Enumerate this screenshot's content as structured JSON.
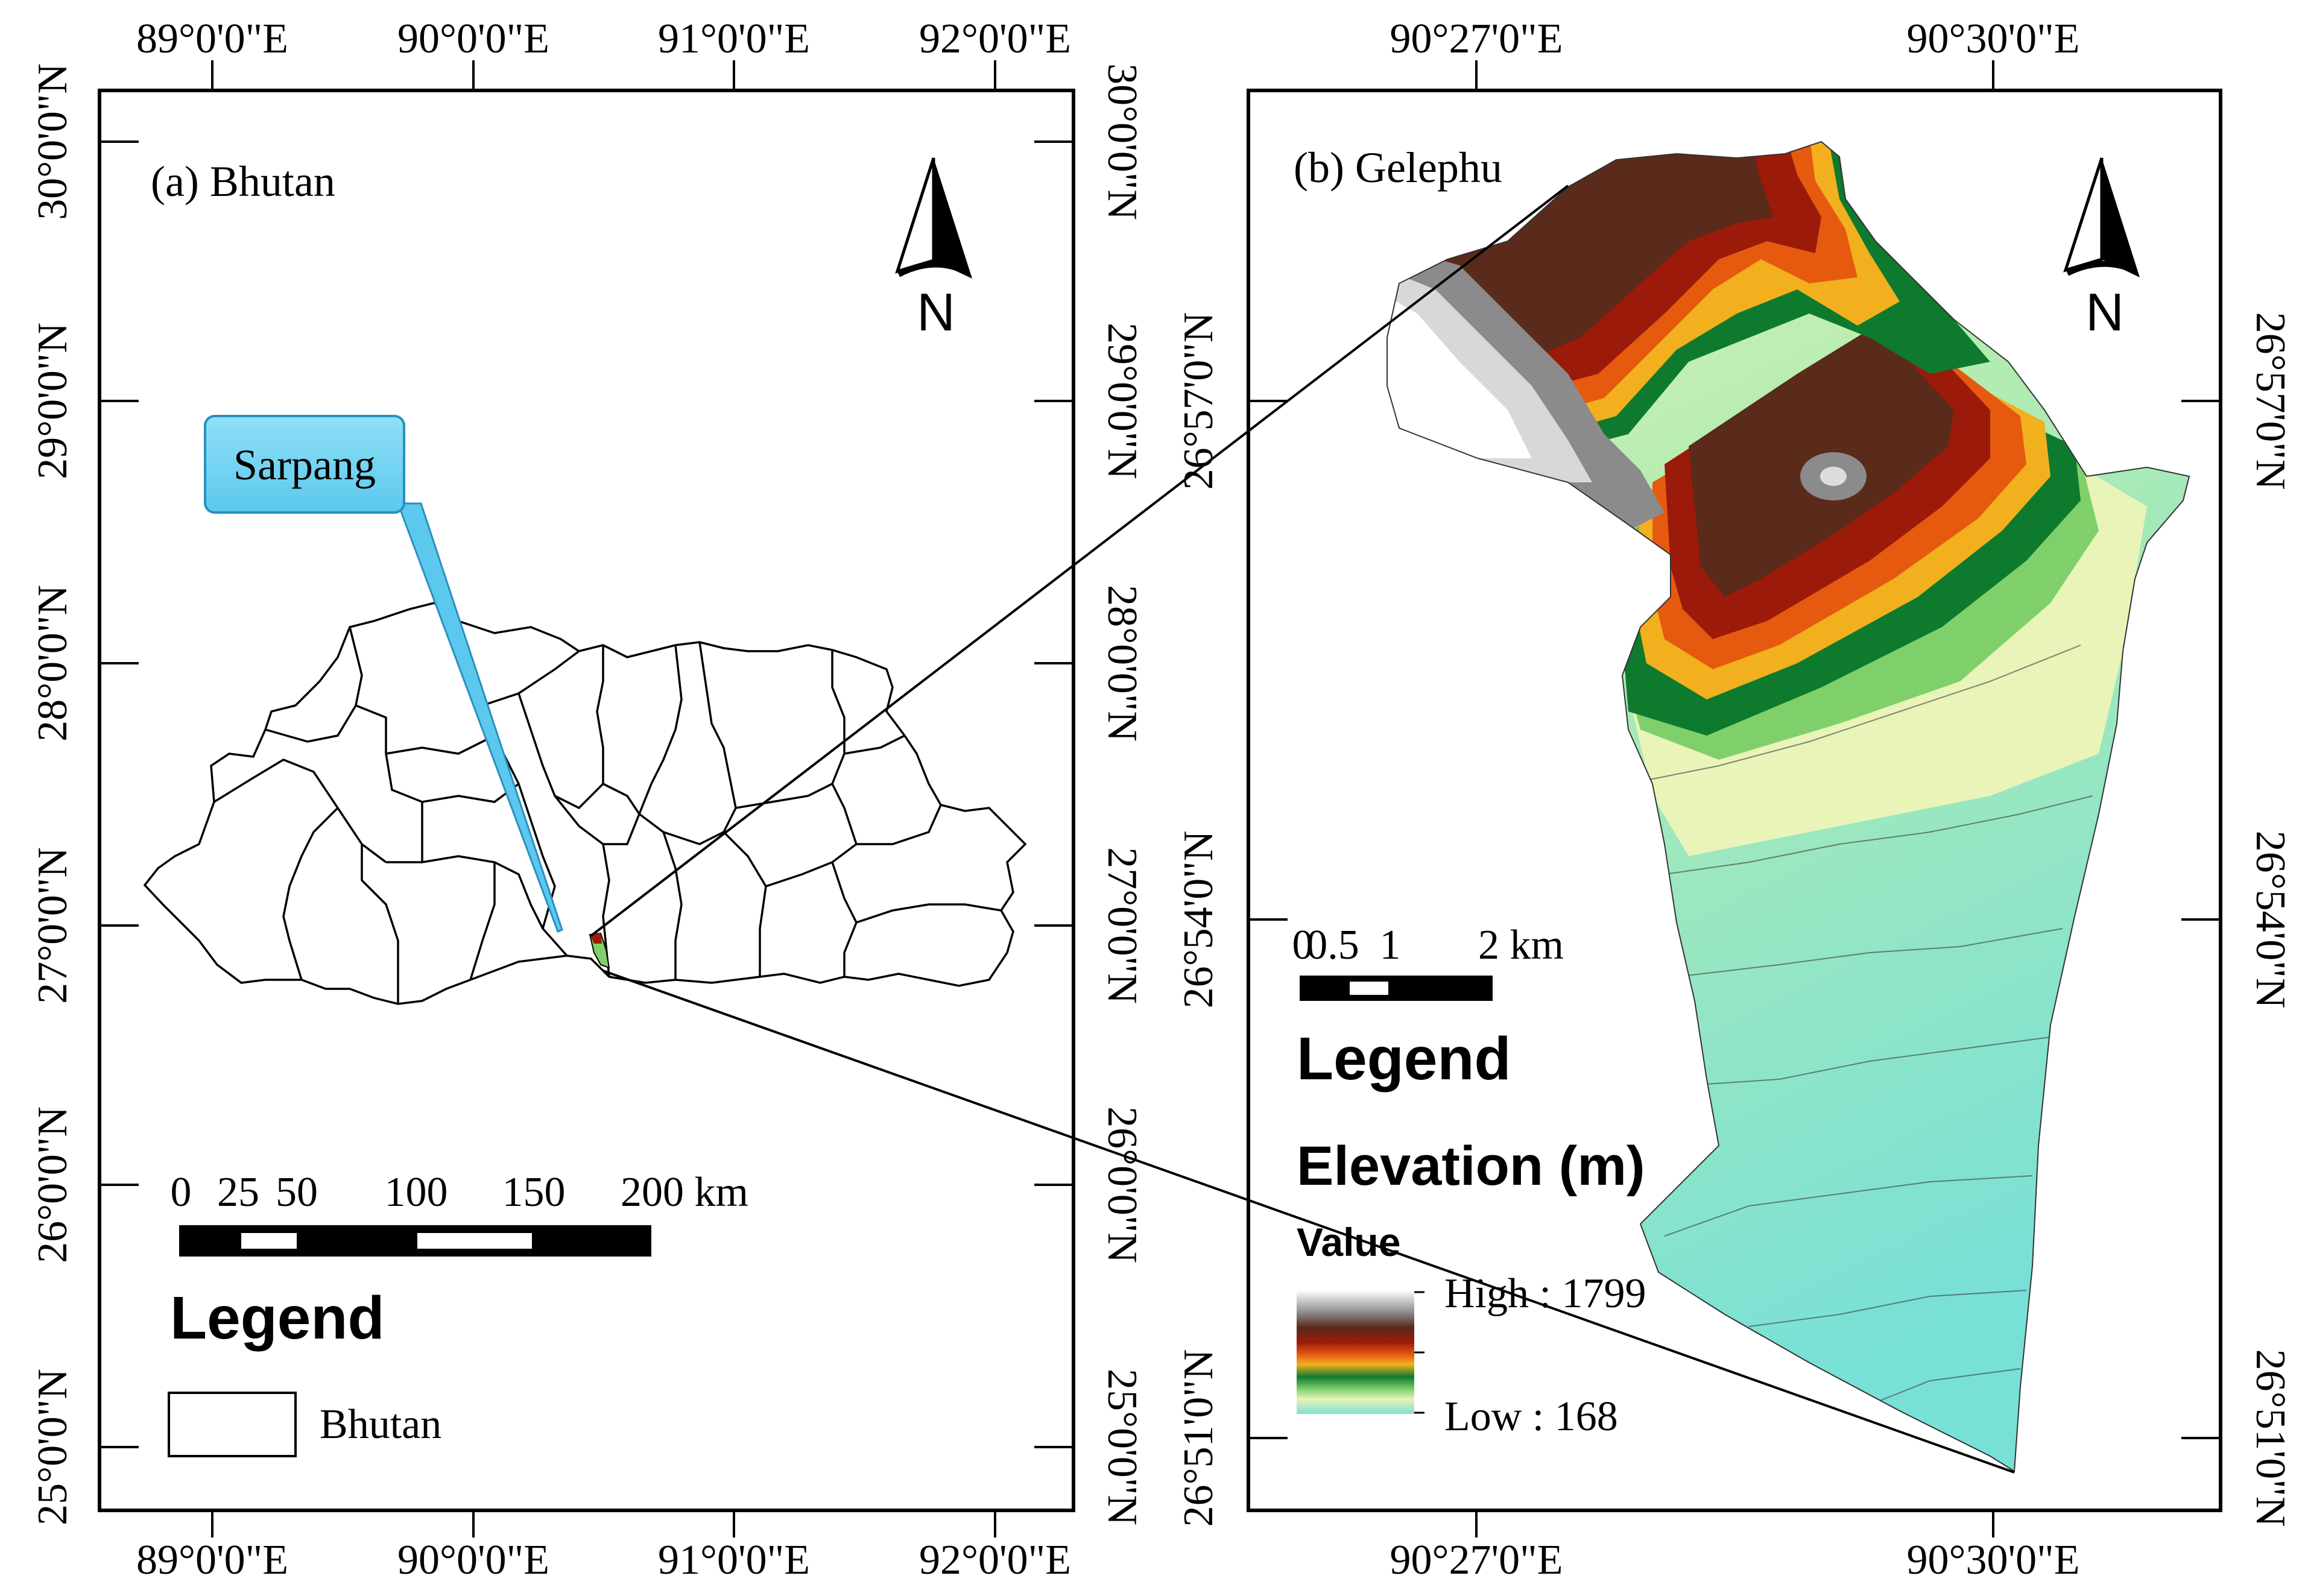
{
  "panel_a": {
    "title": "(a) Bhutan",
    "x_ticks": [
      "89°0'0\"E",
      "90°0'0\"E",
      "91°0'0\"E",
      "92°0'0\"E"
    ],
    "y_ticks": [
      "30°0'0\"N",
      "29°0'0\"N",
      "28°0'0\"N",
      "27°0'0\"N",
      "26°0'0\"N",
      "25°0'0\"N"
    ],
    "callout": "Sarpang",
    "north_label": "N",
    "scale_labels": [
      "0",
      "25",
      "50",
      "100",
      "150",
      "200 km"
    ],
    "legend_title": "Legend",
    "legend_item": "Bhutan"
  },
  "panel_b": {
    "title": "(b) Gelephu",
    "x_ticks": [
      "90°27'0\"E",
      "90°30'0\"E"
    ],
    "y_ticks": [
      "26°57'0\"N",
      "26°54'0\"N",
      "26°51'0\"N"
    ],
    "north_label": "N",
    "scale_labels": [
      "0",
      "0.5",
      "1",
      "2 km"
    ],
    "legend_title": "Legend",
    "legend_subtitle": "Elevation (m)",
    "legend_value": "Value",
    "high_label": "High : 1799",
    "low_label": "Low : 168",
    "elevation_high": 1799,
    "elevation_low": 168,
    "ramp_colors": [
      "#ffffff",
      "#8b8b8b",
      "#5a2a1a",
      "#9b1a0a",
      "#e65a10",
      "#f2b01e",
      "#0e7a2e",
      "#7fd06a",
      "#e8f4b8",
      "#9ee6cc",
      "#7fe0d6"
    ]
  }
}
